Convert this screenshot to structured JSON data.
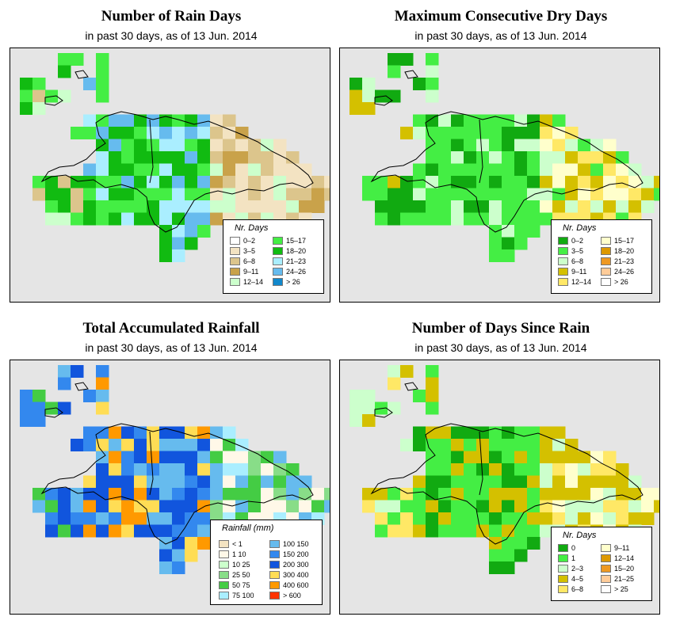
{
  "subtitle_prefix": "in past 30 days, as of",
  "date": "13 Jun. 2014",
  "panels": [
    {
      "title": "Number of Rain Days",
      "subtitle": "in past 30 days, as of  13 Jun. 2014",
      "legend": {
        "title": "Nr. Days",
        "items": [
          {
            "label": "0–2",
            "color": "#ffffff"
          },
          {
            "label": "3–5",
            "color": "#f3e3c2"
          },
          {
            "label": "6–8",
            "color": "#dcc58c"
          },
          {
            "label": "9–11",
            "color": "#c9a24a"
          },
          {
            "label": "12–14",
            "color": "#ccffcc"
          },
          {
            "label": "15–17",
            "color": "#44ee44"
          },
          {
            "label": "18–20",
            "color": "#11bb11"
          },
          {
            "label": "21–23",
            "color": "#aaeeff"
          },
          {
            "label": "24–26",
            "color": "#66bbee"
          },
          {
            "label": "> 26",
            "color": "#1188cc"
          }
        ]
      }
    },
    {
      "title": "Maximum Consecutive Dry Days",
      "subtitle": "in past 30 days, as of  13 Jun. 2014",
      "legend": {
        "title": "Nr. Days",
        "items": [
          {
            "label": "0–2",
            "color": "#11aa11"
          },
          {
            "label": "3–5",
            "color": "#44ee44"
          },
          {
            "label": "6–8",
            "color": "#ccffcc"
          },
          {
            "label": "9–11",
            "color": "#d4c000"
          },
          {
            "label": "12–14",
            "color": "#ffe866"
          },
          {
            "label": "15–17",
            "color": "#ffffcc"
          },
          {
            "label": "18–20",
            "color": "#dd9900"
          },
          {
            "label": "21–23",
            "color": "#ee9922"
          },
          {
            "label": "24–26",
            "color": "#ffcc99"
          },
          {
            "label": "> 26",
            "color": "#ffffff"
          }
        ]
      }
    },
    {
      "title": "Total Accumulated Rainfall",
      "subtitle": "in past 30 days, as of  13 Jun. 2014",
      "legend": {
        "title": "Rainfall (mm)",
        "items": [
          {
            "label": "< 1",
            "color": "#f3e3c2"
          },
          {
            "label": "1    10",
            "color": "#fff8e8"
          },
          {
            "label": "10    25",
            "color": "#ccffcc"
          },
          {
            "label": "25    50",
            "color": "#88dd88"
          },
          {
            "label": "50    75",
            "color": "#44cc44"
          },
          {
            "label": "75   100",
            "color": "#aaeeff"
          },
          {
            "label": "100   150",
            "color": "#66bbee"
          },
          {
            "label": "150   200",
            "color": "#3388ee"
          },
          {
            "label": "200   300",
            "color": "#1155dd"
          },
          {
            "label": "300   400",
            "color": "#ffdd55"
          },
          {
            "label": "400   600",
            "color": "#ff9900"
          },
          {
            "label": "> 600",
            "color": "#ff3300"
          }
        ]
      }
    },
    {
      "title": "Number of Days Since Rain",
      "subtitle": "in past 30 days, as of  13 Jun. 2014",
      "legend": {
        "title": "Nr. Days",
        "items": [
          {
            "label": "0",
            "color": "#11aa11"
          },
          {
            "label": "1",
            "color": "#44ee44"
          },
          {
            "label": "2–3",
            "color": "#ccffcc"
          },
          {
            "label": "4–5",
            "color": "#d4c000"
          },
          {
            "label": "6–8",
            "color": "#ffe866"
          },
          {
            "label": "9–11",
            "color": "#ffffcc"
          },
          {
            "label": "12–14",
            "color": "#dd9900"
          },
          {
            "label": "15–20",
            "color": "#ee9922"
          },
          {
            "label": "21–25",
            "color": "#ffcc99"
          },
          {
            "label": "> 25",
            "color": "#ffffff"
          }
        ]
      }
    }
  ]
}
